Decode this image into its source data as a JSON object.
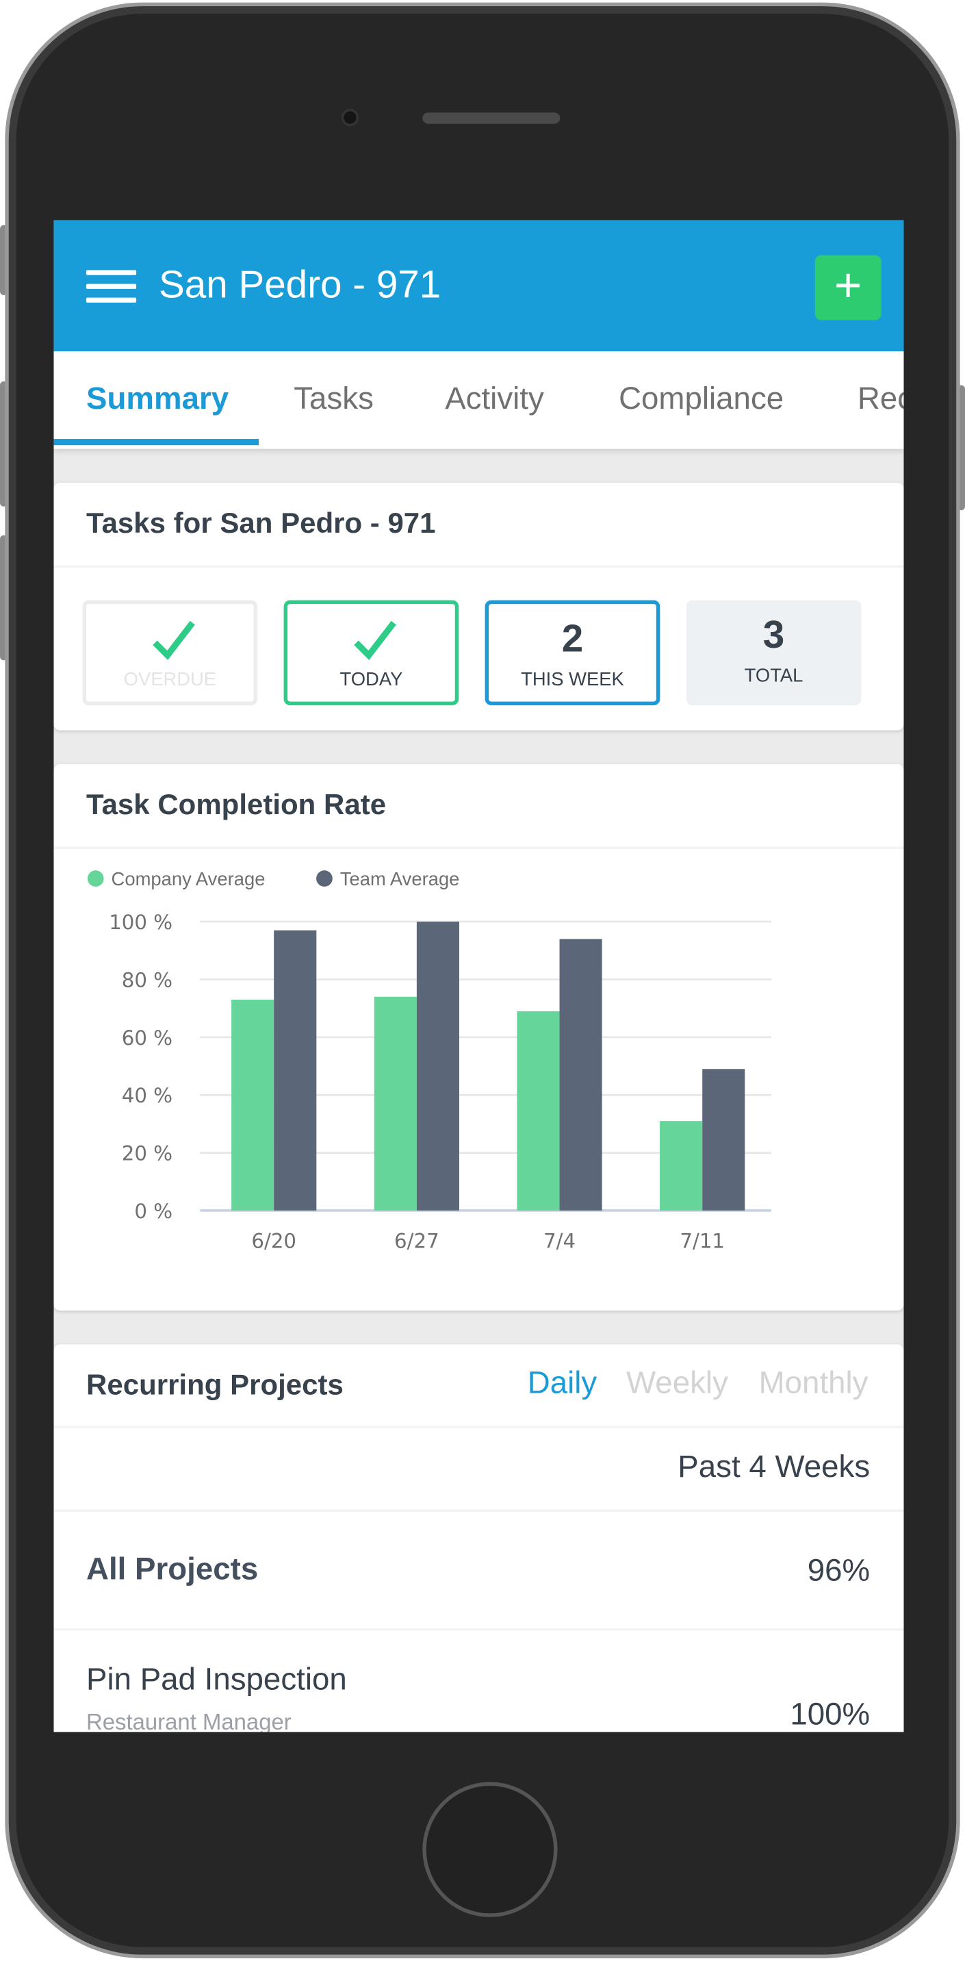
{
  "header": {
    "title": "San Pedro - 971",
    "add_label": "+"
  },
  "tabs": [
    {
      "label": "Summary",
      "active": true
    },
    {
      "label": "Tasks"
    },
    {
      "label": "Activity"
    },
    {
      "label": "Compliance"
    },
    {
      "label": "Rec"
    }
  ],
  "tasks_card": {
    "title": "Tasks for San Pedro - 971",
    "stats": [
      {
        "label": "OVERDUE",
        "value": "✓"
      },
      {
        "label": "TODAY",
        "value": "✓"
      },
      {
        "label": "THIS WEEK",
        "value": "2"
      },
      {
        "label": "TOTAL",
        "value": "3"
      }
    ]
  },
  "completion_card": {
    "title": "Task Completion Rate"
  },
  "chart_data": {
    "type": "bar",
    "categories": [
      "6/20",
      "6/27",
      "7/4",
      "7/11"
    ],
    "series": [
      {
        "name": "Company Average",
        "color": "#66d59a",
        "values": [
          73,
          74,
          69,
          31
        ]
      },
      {
        "name": "Team Average",
        "color": "#5b6779",
        "values": [
          97,
          100,
          94,
          49
        ]
      }
    ],
    "yticks": [
      "0 %",
      "20 %",
      "40 %",
      "60 %",
      "80 %",
      "100 %"
    ],
    "ylim": [
      0,
      100
    ],
    "grid": true,
    "legend": "top-left"
  },
  "recurring_card": {
    "title": "Recurring Projects",
    "periods": [
      {
        "label": "Daily",
        "active": true
      },
      {
        "label": "Weekly"
      },
      {
        "label": "Monthly"
      }
    ],
    "range_label": "Past 4 Weeks",
    "rows": [
      {
        "name": "All Projects",
        "value": "96%"
      },
      {
        "name": "Pin Pad Inspection",
        "sub": "Restaurant Manager",
        "value": "100%"
      }
    ]
  },
  "colors": {
    "brand": "#189dd8",
    "add": "#2ecc71",
    "today_border": "#2ecc89",
    "week_border": "#1a9ad6"
  }
}
